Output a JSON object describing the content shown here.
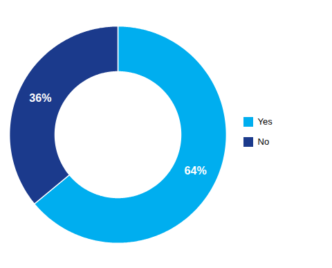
{
  "chart_data": {
    "type": "donut",
    "categories": [
      "Yes",
      "No"
    ],
    "values": [
      64,
      36
    ],
    "value_labels": [
      "64%",
      "36%"
    ],
    "colors": [
      "#00AEEF",
      "#1B3A8C"
    ],
    "data_labels": true,
    "legend": "right"
  }
}
